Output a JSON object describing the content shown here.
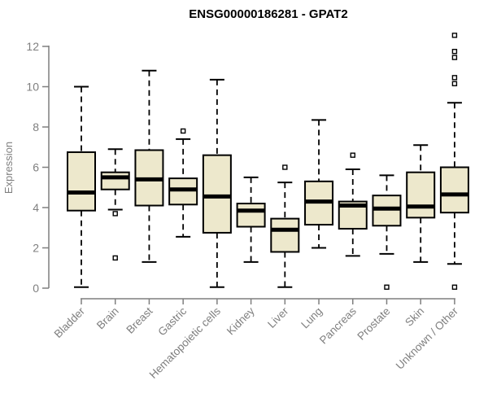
{
  "chart_data": {
    "type": "boxplot",
    "title": "ENSG00000186281 - GPAT2",
    "ylabel": "Expression",
    "xlabel": "",
    "ylim": [
      0,
      12
    ],
    "yticks": [
      0,
      2,
      4,
      6,
      8,
      10,
      12
    ],
    "grid": false,
    "legend": "none",
    "colors": {
      "box_fill": "#EDE8CC",
      "line": "#000000",
      "axis": "#7F7F7F",
      "title": "#000000",
      "background": "#FFFFFF"
    },
    "categories": [
      "Bladder",
      "Brain",
      "Breast",
      "Gastric",
      "Hematopoietic cells",
      "Kidney",
      "Liver",
      "Lung",
      "Pancreas",
      "Prostate",
      "Skin",
      "Unknown / Other"
    ],
    "series": [
      {
        "label": "Bladder",
        "whisker_low": 0.05,
        "q1": 3.85,
        "median": 4.75,
        "q3": 6.75,
        "whisker_high": 10.0,
        "outliers": []
      },
      {
        "label": "Brain",
        "whisker_low": 3.9,
        "q1": 4.9,
        "median": 5.5,
        "q3": 5.75,
        "whisker_high": 6.9,
        "outliers": [
          3.7,
          1.5
        ]
      },
      {
        "label": "Breast",
        "whisker_low": 1.3,
        "q1": 4.1,
        "median": 5.4,
        "q3": 6.85,
        "whisker_high": 10.8,
        "outliers": []
      },
      {
        "label": "Gastric",
        "whisker_low": 2.55,
        "q1": 4.15,
        "median": 4.9,
        "q3": 5.45,
        "whisker_high": 7.4,
        "outliers": [
          7.8
        ]
      },
      {
        "label": "Hematopoietic cells",
        "whisker_low": 0.05,
        "q1": 2.75,
        "median": 4.55,
        "q3": 6.6,
        "whisker_high": 10.35,
        "outliers": []
      },
      {
        "label": "Kidney",
        "whisker_low": 1.3,
        "q1": 3.05,
        "median": 3.85,
        "q3": 4.2,
        "whisker_high": 5.5,
        "outliers": []
      },
      {
        "label": "Liver",
        "whisker_low": 0.05,
        "q1": 1.8,
        "median": 2.9,
        "q3": 3.45,
        "whisker_high": 5.25,
        "outliers": [
          6.0
        ]
      },
      {
        "label": "Lung",
        "whisker_low": 2.0,
        "q1": 3.15,
        "median": 4.3,
        "q3": 5.3,
        "whisker_high": 8.35,
        "outliers": []
      },
      {
        "label": "Pancreas",
        "whisker_low": 1.6,
        "q1": 2.95,
        "median": 4.1,
        "q3": 4.3,
        "whisker_high": 5.9,
        "outliers": [
          6.6
        ]
      },
      {
        "label": "Prostate",
        "whisker_low": 1.7,
        "q1": 3.1,
        "median": 3.95,
        "q3": 4.6,
        "whisker_high": 5.6,
        "outliers": [
          0.05
        ]
      },
      {
        "label": "Skin",
        "whisker_low": 1.3,
        "q1": 3.5,
        "median": 4.05,
        "q3": 5.75,
        "whisker_high": 7.1,
        "outliers": []
      },
      {
        "label": "Unknown / Other",
        "whisker_low": 1.2,
        "q1": 3.75,
        "median": 4.65,
        "q3": 6.0,
        "whisker_high": 9.2,
        "outliers": [
          12.55,
          11.75,
          11.45,
          10.45,
          10.15,
          0.05
        ]
      }
    ]
  }
}
